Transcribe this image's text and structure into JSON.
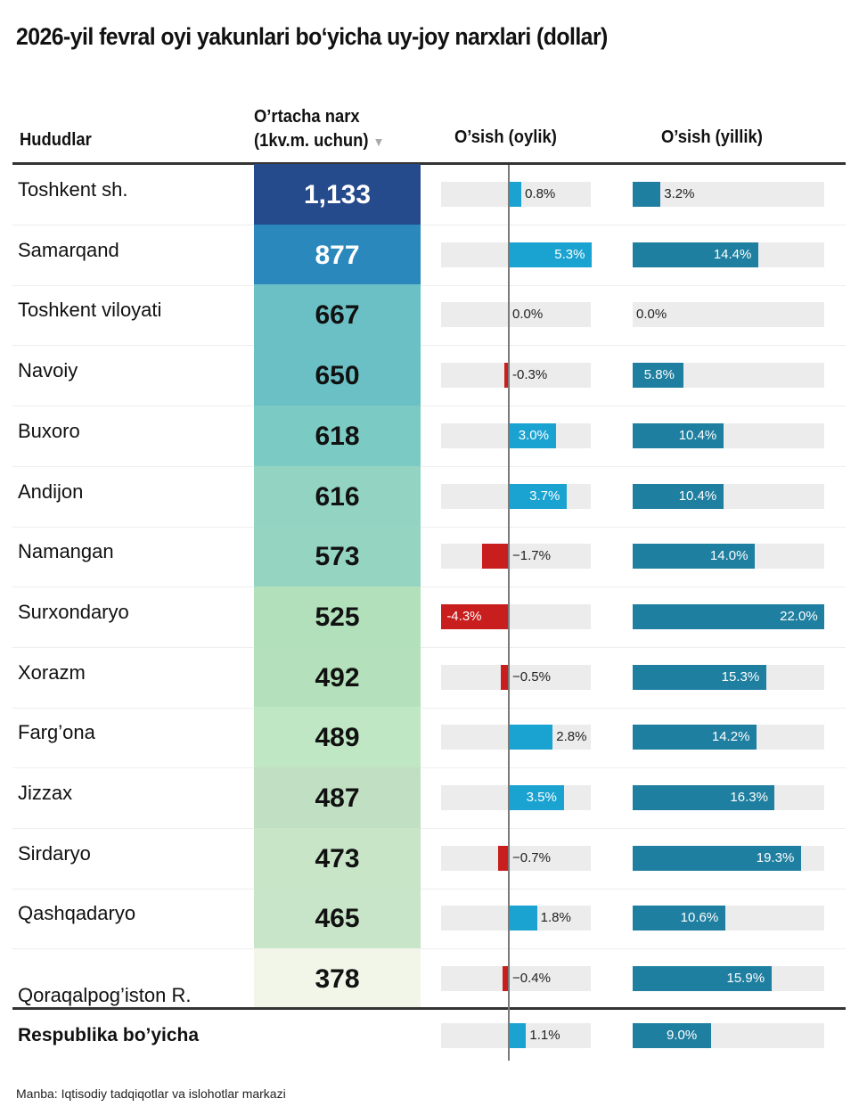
{
  "title": "2026-yil fevral oyi yakunlari bo‘yicha uy-joy narxlari (dollar)",
  "headers": {
    "region": "Hududlar",
    "price_line1": "O’rtacha narx",
    "price_line2": "(1kv.m. uchun)",
    "sort_icon": "▼",
    "monthly": "O’sish (oylik)",
    "yearly": "O’sish (yillik)"
  },
  "colors": {
    "monthly_positive": "#1aa3d1",
    "monthly_negative": "#c81e1e",
    "yearly": "#1f7fa0",
    "track": "#ececec"
  },
  "chart_data": {
    "type": "table",
    "title": "2026-yil fevral oyi yakunlari bo‘yicha uy-joy narxlari (dollar)",
    "columns": [
      "Hududlar",
      "O’rtacha narx (1kv.m. uchun)",
      "O’sish (oylik)",
      "O’sish (yillik)"
    ],
    "monthly_range": [
      -4.3,
      5.3
    ],
    "yearly_range": [
      0,
      22.0
    ],
    "rows": [
      {
        "region": "Toshkent sh.",
        "price": "1,133",
        "price_value": 1133,
        "price_color": "#264b8c",
        "price_text_color": "#ffffff",
        "monthly": 0.8,
        "monthly_label": "0.8%",
        "yearly": 3.2,
        "yearly_label": "3.2%"
      },
      {
        "region": "Samarqand",
        "price": "877",
        "price_value": 877,
        "price_color": "#2a88bc",
        "price_text_color": "#ffffff",
        "monthly": 5.3,
        "monthly_label": "5.3%",
        "yearly": 14.4,
        "yearly_label": "14.4%"
      },
      {
        "region": "Toshkent viloyati",
        "price": "667",
        "price_value": 667,
        "price_color": "#6bc0c6",
        "price_text_color": "#111111",
        "monthly": 0.0,
        "monthly_label": "0.0%",
        "yearly": 0.0,
        "yearly_label": "0.0%"
      },
      {
        "region": "Navoiy",
        "price": "650",
        "price_value": 650,
        "price_color": "#6ac0c5",
        "price_text_color": "#111111",
        "monthly": -0.3,
        "monthly_label": "-0.3%",
        "yearly": 5.8,
        "yearly_label": "5.8%"
      },
      {
        "region": "Buxoro",
        "price": "618",
        "price_value": 618,
        "price_color": "#7ccac4",
        "price_text_color": "#111111",
        "monthly": 3.0,
        "monthly_label": "3.0%",
        "yearly": 10.4,
        "yearly_label": "10.4%"
      },
      {
        "region": "Andijon",
        "price": "616",
        "price_value": 616,
        "price_color": "#93d3c1",
        "price_text_color": "#111111",
        "monthly": 3.7,
        "monthly_label": "3.7%",
        "yearly": 10.4,
        "yearly_label": "10.4%"
      },
      {
        "region": "Namangan",
        "price": "573",
        "price_value": 573,
        "price_color": "#94d4c1",
        "price_text_color": "#111111",
        "monthly": -1.7,
        "monthly_label": "−1.7%",
        "yearly": 14.0,
        "yearly_label": "14.0%"
      },
      {
        "region": "Surxondaryo",
        "price": "525",
        "price_value": 525,
        "price_color": "#b1e0bb",
        "price_text_color": "#111111",
        "monthly": -4.3,
        "monthly_label": "-4.3%",
        "yearly": 22.0,
        "yearly_label": "22.0%"
      },
      {
        "region": "Xorazm",
        "price": "492",
        "price_value": 492,
        "price_color": "#b4e1bb",
        "price_text_color": "#111111",
        "monthly": -0.5,
        "monthly_label": "−0.5%",
        "yearly": 15.3,
        "yearly_label": "15.3%"
      },
      {
        "region": "Farg’ona",
        "price": "489",
        "price_value": 489,
        "price_color": "#c0e7c4",
        "price_text_color": "#111111",
        "monthly": 2.8,
        "monthly_label": "2.8%",
        "yearly": 14.2,
        "yearly_label": "14.2%"
      },
      {
        "region": "Jizzax",
        "price": "487",
        "price_value": 487,
        "price_color": "#c1e0c3",
        "price_text_color": "#111111",
        "monthly": 3.5,
        "monthly_label": "3.5%",
        "yearly": 16.3,
        "yearly_label": "16.3%"
      },
      {
        "region": "Sirdaryo",
        "price": "473",
        "price_value": 473,
        "price_color": "#c8e5c8",
        "price_text_color": "#111111",
        "monthly": -0.7,
        "monthly_label": "−0.7%",
        "yearly": 19.3,
        "yearly_label": "19.3%"
      },
      {
        "region": "Qashqadaryo",
        "price": "465",
        "price_value": 465,
        "price_color": "#c9e5c9",
        "price_text_color": "#111111",
        "monthly": 1.8,
        "monthly_label": "1.8%",
        "yearly": 10.6,
        "yearly_label": "10.6%"
      },
      {
        "region": "Qoraqalpog’iston R.",
        "price": "378",
        "price_value": 378,
        "price_color": "#f1f6e9",
        "price_text_color": "#111111",
        "monthly": -0.4,
        "monthly_label": "−0.4%",
        "yearly": 15.9,
        "yearly_label": "15.9%"
      }
    ],
    "total": {
      "region": "Respublika bo’yicha",
      "monthly": 1.1,
      "monthly_label": "1.1%",
      "yearly": 9.0,
      "yearly_label": "9.0%"
    }
  },
  "source": "Manba: Iqtisodiy tadqiqotlar va islohotlar markazi"
}
